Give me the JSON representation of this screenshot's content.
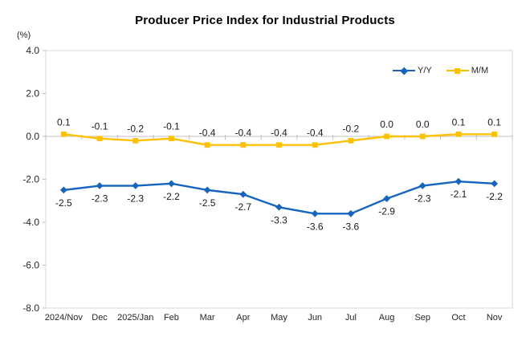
{
  "page": {
    "background": "#FFFFFF"
  },
  "chart_data": {
    "type": "line",
    "title": "Producer Price Index for Industrial Products",
    "unit_label": "(%)",
    "categories": [
      "2024/Nov",
      "Dec",
      "2025/Jan",
      "Feb",
      "Mar",
      "Apr",
      "May",
      "Jun",
      "Jul",
      "Aug",
      "Sep",
      "Oct",
      "Nov"
    ],
    "series": [
      {
        "name": "Y/Y",
        "color": "#1565C0",
        "marker": "diamond",
        "label_position": "below",
        "values": [
          -2.5,
          -2.3,
          -2.3,
          -2.2,
          -2.5,
          -2.7,
          -3.3,
          -3.6,
          -3.6,
          -2.9,
          -2.3,
          -2.1,
          -2.2
        ]
      },
      {
        "name": "M/M",
        "color": "#FFC000",
        "marker": "square",
        "label_position": "above",
        "values": [
          0.1,
          -0.1,
          -0.2,
          -0.1,
          -0.4,
          -0.4,
          -0.4,
          -0.4,
          -0.2,
          0.0,
          0.0,
          0.1,
          0.1
        ]
      }
    ],
    "y_axis": {
      "min": -8,
      "max": 4,
      "step": 2,
      "tick_labels": [
        "4.0",
        "2.0",
        "0.0",
        "-2.0",
        "-4.0",
        "-6.0",
        "-8.0"
      ]
    },
    "legend_position": "top-right-inside",
    "grid": false,
    "data_labels": true,
    "colors": {
      "plot_border": "#D9D9D9",
      "axis_line": "#BFBFBF",
      "text": "#262626"
    }
  }
}
